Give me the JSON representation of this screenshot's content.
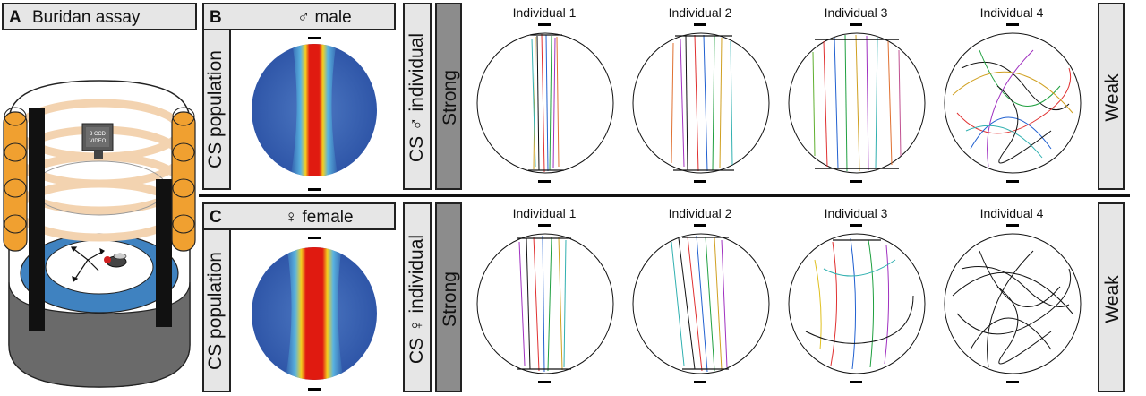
{
  "panelA": {
    "letter": "A",
    "title": "Buridan assay",
    "camera_label": [
      "3 CCD",
      "VIDEO"
    ]
  },
  "rows": [
    {
      "letter": "B",
      "sex_label": "♂ male",
      "population_label": "CS population",
      "individual_label": "CS ♂ individual",
      "strong_label": "Strong",
      "weak_label": "Weak",
      "individuals": [
        "Individual 1",
        "Individual 2",
        "Individual 3",
        "Individual 4"
      ]
    },
    {
      "letter": "C",
      "sex_label": "♀ female",
      "population_label": "CS population",
      "individual_label": "CS ♀ individual",
      "strong_label": "Strong",
      "weak_label": "Weak",
      "individuals": [
        "Individual 1",
        "Individual 2",
        "Individual 3",
        "Individual 4"
      ]
    }
  ],
  "colors": {
    "heat_low": "#3a5fb0",
    "heat_mid": "#f5d020",
    "heat_high": "#e01a10",
    "stripe": "#111111",
    "ring": "#f0a030",
    "platform": "#3f82c0"
  }
}
